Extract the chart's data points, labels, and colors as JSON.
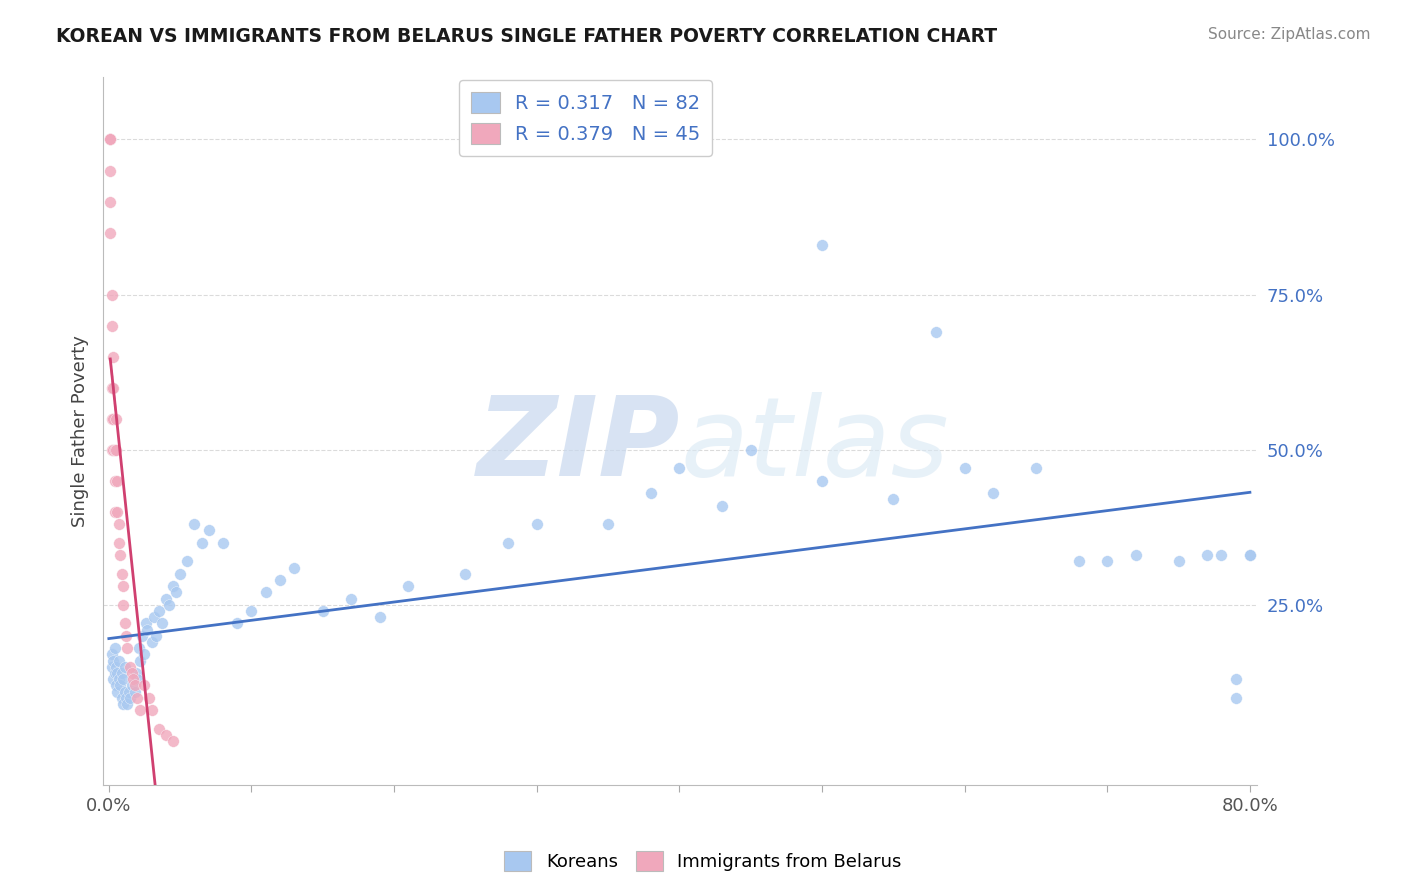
{
  "title": "KOREAN VS IMMIGRANTS FROM BELARUS SINGLE FATHER POVERTY CORRELATION CHART",
  "source": "Source: ZipAtlas.com",
  "ylabel": "Single Father Poverty",
  "r_korean": 0.317,
  "n_korean": 82,
  "r_belarus": 0.379,
  "n_belarus": 45,
  "xlim": [
    -0.004,
    0.805
  ],
  "ylim": [
    -0.04,
    1.1
  ],
  "xticks": [
    0.0,
    0.8
  ],
  "xtick_labels": [
    "0.0%",
    "80.0%"
  ],
  "ytick_vals": [
    0.25,
    0.5,
    0.75,
    1.0
  ],
  "ytick_labels": [
    "25.0%",
    "50.0%",
    "75.0%",
    "100.0%"
  ],
  "korean_color": "#a8c8f0",
  "belarus_color": "#f0a8bc",
  "trend_korean_color": "#4472c4",
  "trend_belarus_color": "#d04070",
  "watermark": "ZIPatlas",
  "watermark_color": "#dce8f5",
  "legend_label_korean": "Koreans",
  "legend_label_belarus": "Immigrants from Belarus",
  "grid_color": "#cccccc",
  "background_color": "#ffffff",
  "korean_x": [
    0.002,
    0.002,
    0.003,
    0.003,
    0.004,
    0.004,
    0.005,
    0.005,
    0.006,
    0.006,
    0.007,
    0.007,
    0.008,
    0.009,
    0.009,
    0.01,
    0.01,
    0.011,
    0.011,
    0.012,
    0.013,
    0.014,
    0.015,
    0.016,
    0.018,
    0.019,
    0.02,
    0.021,
    0.022,
    0.023,
    0.025,
    0.026,
    0.027,
    0.03,
    0.032,
    0.033,
    0.035,
    0.037,
    0.04,
    0.042,
    0.045,
    0.047,
    0.05,
    0.055,
    0.06,
    0.065,
    0.07,
    0.08,
    0.09,
    0.1,
    0.11,
    0.12,
    0.13,
    0.15,
    0.17,
    0.19,
    0.21,
    0.25,
    0.28,
    0.3,
    0.35,
    0.38,
    0.4,
    0.43,
    0.45,
    0.5,
    0.5,
    0.55,
    0.58,
    0.6,
    0.62,
    0.65,
    0.68,
    0.7,
    0.72,
    0.75,
    0.77,
    0.78,
    0.79,
    0.79,
    0.8,
    0.8
  ],
  "korean_y": [
    0.15,
    0.17,
    0.13,
    0.16,
    0.14,
    0.18,
    0.12,
    0.15,
    0.11,
    0.14,
    0.13,
    0.16,
    0.12,
    0.1,
    0.14,
    0.09,
    0.13,
    0.11,
    0.15,
    0.1,
    0.09,
    0.11,
    0.1,
    0.12,
    0.11,
    0.14,
    0.13,
    0.18,
    0.16,
    0.2,
    0.17,
    0.22,
    0.21,
    0.19,
    0.23,
    0.2,
    0.24,
    0.22,
    0.26,
    0.25,
    0.28,
    0.27,
    0.3,
    0.32,
    0.38,
    0.35,
    0.37,
    0.35,
    0.22,
    0.24,
    0.27,
    0.29,
    0.31,
    0.24,
    0.26,
    0.23,
    0.28,
    0.3,
    0.35,
    0.38,
    0.38,
    0.43,
    0.47,
    0.41,
    0.5,
    0.83,
    0.45,
    0.42,
    0.69,
    0.47,
    0.43,
    0.47,
    0.32,
    0.32,
    0.33,
    0.32,
    0.33,
    0.33,
    0.1,
    0.13,
    0.33,
    0.33
  ],
  "belarus_x": [
    0.001,
    0.001,
    0.001,
    0.001,
    0.001,
    0.001,
    0.001,
    0.001,
    0.002,
    0.002,
    0.002,
    0.002,
    0.002,
    0.003,
    0.003,
    0.003,
    0.003,
    0.004,
    0.004,
    0.004,
    0.005,
    0.005,
    0.006,
    0.006,
    0.007,
    0.007,
    0.008,
    0.009,
    0.01,
    0.01,
    0.011,
    0.012,
    0.013,
    0.015,
    0.016,
    0.017,
    0.018,
    0.02,
    0.022,
    0.025,
    0.028,
    0.03,
    0.035,
    0.04,
    0.045
  ],
  "belarus_y": [
    1.0,
    1.0,
    1.0,
    1.0,
    1.0,
    0.95,
    0.9,
    0.85,
    0.75,
    0.7,
    0.6,
    0.55,
    0.5,
    0.65,
    0.6,
    0.55,
    0.5,
    0.5,
    0.45,
    0.4,
    0.55,
    0.5,
    0.45,
    0.4,
    0.38,
    0.35,
    0.33,
    0.3,
    0.28,
    0.25,
    0.22,
    0.2,
    0.18,
    0.15,
    0.14,
    0.13,
    0.12,
    0.1,
    0.08,
    0.12,
    0.1,
    0.08,
    0.05,
    0.04,
    0.03
  ]
}
